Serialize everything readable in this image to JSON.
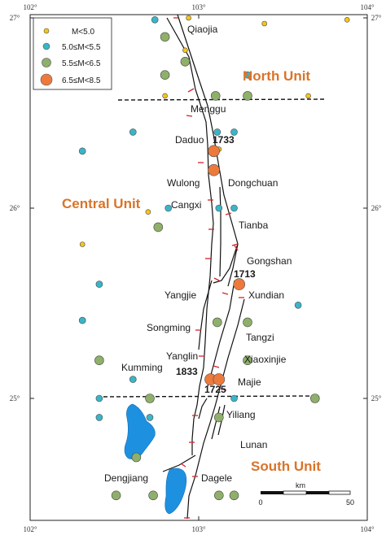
{
  "map": {
    "ticks": {
      "top": [
        "102°",
        "103°",
        "104°"
      ],
      "bottom": [
        "102°",
        "103°",
        "104°"
      ],
      "left": [
        "27°",
        "26°",
        "25°"
      ],
      "right": [
        "27°",
        "26°",
        "25°"
      ]
    },
    "legend": {
      "items": [
        {
          "label": "M<5.0",
          "color": "#f5c518",
          "size_class": "tiny"
        },
        {
          "label": "5.0≤M<5.5",
          "color": "#3ab5c8",
          "size_class": "small"
        },
        {
          "label": "5.5≤M<6.5",
          "color": "#8fb06a",
          "size_class": "medium"
        },
        {
          "label": "6.5≤M<8.5",
          "color": "#ec7a3c",
          "size_class": "large"
        }
      ]
    },
    "units": {
      "north": "North Unit",
      "central": "Central Unit",
      "south": "South Unit"
    },
    "places": {
      "qiaojia": "Qiaojia",
      "menggu": "Menggu",
      "daduo": "Daduo",
      "wulong": "Wulong",
      "dongchuan": "Dongchuan",
      "cangxi": "Cangxi",
      "tianba": "Tianba",
      "gongshan": "Gongshan",
      "yangjie": "Yangjie",
      "xundian": "Xundian",
      "songming": "Songming",
      "tangzi": "Tangzi",
      "yanglin": "Yanglin",
      "xiaoxinjie": "Xiaoxinjie",
      "kumming": "Kumming",
      "majie": "Majie",
      "yiliang": "Yiliang",
      "lunan": "Lunan",
      "dengjiang": "Dengjiang",
      "dagele": "Dagele"
    },
    "years": {
      "y1733": "1733",
      "y1713": "1713",
      "y1833": "1833",
      "y1725": "1725"
    },
    "scale_bar": {
      "unit": "km",
      "start": "0",
      "end": "50"
    },
    "colors": {
      "yellow": "#f5c518",
      "cyan": "#3ab5c8",
      "green": "#8fb06a",
      "orange": "#ec7a3c",
      "lake": "#1e90e0",
      "fault_tick": "#d4222a",
      "unit_label": "#d9742a"
    },
    "earthquakes": [
      {
        "lon": 102.74,
        "lat": 26.99,
        "class": "cyan"
      },
      {
        "lon": 102.94,
        "lat": 27.0,
        "class": "yellow"
      },
      {
        "lon": 103.39,
        "lat": 26.97,
        "class": "yellow"
      },
      {
        "lon": 103.88,
        "lat": 26.99,
        "class": "yellow"
      },
      {
        "lon": 102.8,
        "lat": 26.9,
        "class": "green"
      },
      {
        "lon": 102.92,
        "lat": 26.83,
        "class": "yellow"
      },
      {
        "lon": 102.92,
        "lat": 26.77,
        "class": "green"
      },
      {
        "lon": 102.8,
        "lat": 26.7,
        "class": "green"
      },
      {
        "lon": 103.29,
        "lat": 26.7,
        "class": "cyan"
      },
      {
        "lon": 102.8,
        "lat": 26.59,
        "class": "yellow"
      },
      {
        "lon": 103.1,
        "lat": 26.59,
        "class": "green"
      },
      {
        "lon": 103.29,
        "lat": 26.59,
        "class": "green"
      },
      {
        "lon": 103.65,
        "lat": 26.59,
        "class": "yellow"
      },
      {
        "lon": 102.61,
        "lat": 26.4,
        "class": "cyan"
      },
      {
        "lon": 103.11,
        "lat": 26.4,
        "class": "cyan"
      },
      {
        "lon": 103.21,
        "lat": 26.4,
        "class": "cyan"
      },
      {
        "lon": 102.31,
        "lat": 26.3,
        "class": "cyan"
      },
      {
        "lon": 103.12,
        "lat": 26.31,
        "class": "yellow"
      },
      {
        "lon": 103.09,
        "lat": 26.3,
        "class": "orange"
      },
      {
        "lon": 103.09,
        "lat": 26.2,
        "class": "orange"
      },
      {
        "lon": 102.82,
        "lat": 26.0,
        "class": "cyan"
      },
      {
        "lon": 103.12,
        "lat": 26.0,
        "class": "cyan"
      },
      {
        "lon": 102.7,
        "lat": 25.98,
        "class": "yellow"
      },
      {
        "lon": 103.21,
        "lat": 26.0,
        "class": "cyan"
      },
      {
        "lon": 102.76,
        "lat": 25.9,
        "class": "green"
      },
      {
        "lon": 102.31,
        "lat": 25.81,
        "class": "yellow"
      },
      {
        "lon": 102.41,
        "lat": 25.6,
        "class": "cyan"
      },
      {
        "lon": 103.24,
        "lat": 25.6,
        "class": "orange"
      },
      {
        "lon": 103.59,
        "lat": 25.49,
        "class": "cyan"
      },
      {
        "lon": 102.31,
        "lat": 25.41,
        "class": "cyan"
      },
      {
        "lon": 103.11,
        "lat": 25.4,
        "class": "green"
      },
      {
        "lon": 103.29,
        "lat": 25.4,
        "class": "green"
      },
      {
        "lon": 102.41,
        "lat": 25.2,
        "class": "green"
      },
      {
        "lon": 103.29,
        "lat": 25.2,
        "class": "green"
      },
      {
        "lon": 102.61,
        "lat": 25.1,
        "class": "cyan"
      },
      {
        "lon": 103.07,
        "lat": 25.1,
        "class": "orange"
      },
      {
        "lon": 103.12,
        "lat": 25.1,
        "class": "orange"
      },
      {
        "lon": 102.41,
        "lat": 25.0,
        "class": "cyan"
      },
      {
        "lon": 102.71,
        "lat": 25.0,
        "class": "green"
      },
      {
        "lon": 103.21,
        "lat": 25.0,
        "class": "cyan"
      },
      {
        "lon": 103.69,
        "lat": 25.0,
        "class": "green"
      },
      {
        "lon": 102.41,
        "lat": 24.9,
        "class": "cyan"
      },
      {
        "lon": 102.71,
        "lat": 24.9,
        "class": "cyan"
      },
      {
        "lon": 103.12,
        "lat": 24.9,
        "class": "green"
      },
      {
        "lon": 102.63,
        "lat": 24.69,
        "class": "green"
      },
      {
        "lon": 102.51,
        "lat": 24.49,
        "class": "green"
      },
      {
        "lon": 102.73,
        "lat": 24.49,
        "class": "green"
      },
      {
        "lon": 103.12,
        "lat": 24.49,
        "class": "green"
      },
      {
        "lon": 103.21,
        "lat": 24.49,
        "class": "green"
      }
    ]
  }
}
